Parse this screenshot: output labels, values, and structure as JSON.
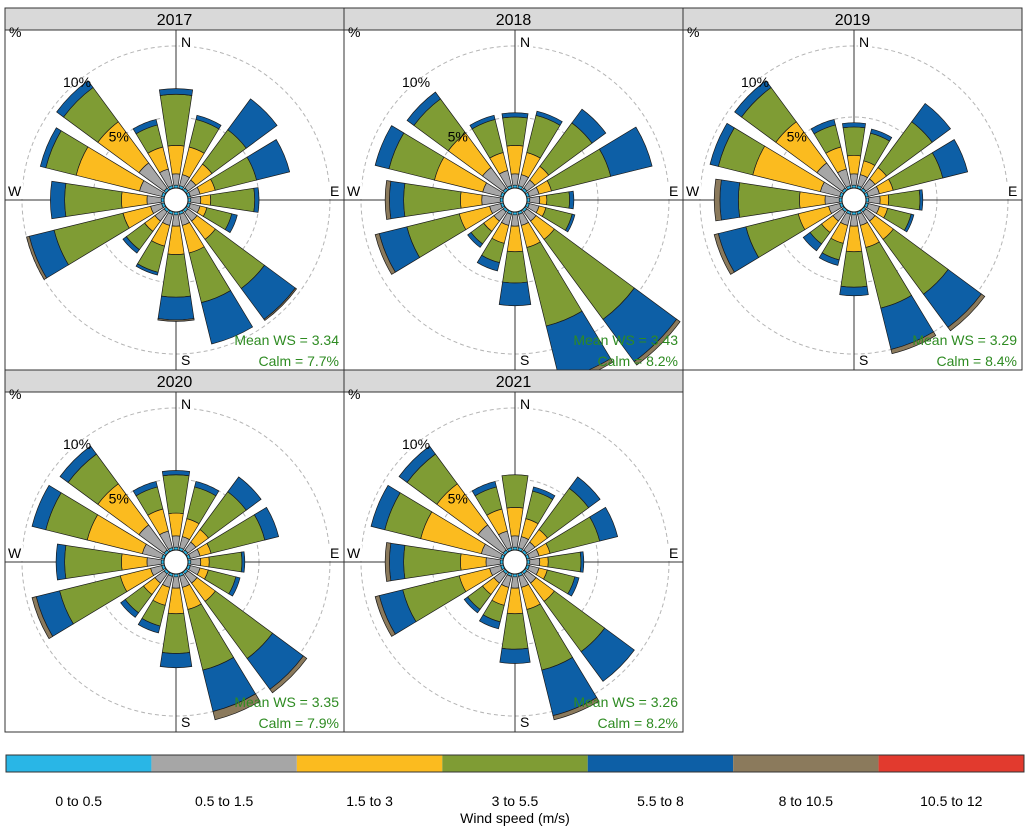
{
  "chart_data": {
    "type": "windrose",
    "directions": [
      "N",
      "NNE",
      "NE",
      "ENE",
      "E",
      "ESE",
      "SE",
      "SSE",
      "S",
      "SSW",
      "SW",
      "WSW",
      "W",
      "WNW",
      "NW",
      "NNW"
    ],
    "compass_labels": {
      "north": "N",
      "east": "E",
      "south": "S",
      "west": "W"
    },
    "ring_labels": [
      "5%",
      "10%"
    ],
    "ring_values": [
      5,
      10
    ],
    "corner_label": "%",
    "max_percent": 14,
    "legend": {
      "title": "Wind speed (m/s)",
      "bins": [
        {
          "label": "0 to 0.5",
          "color": "#29b6e6"
        },
        {
          "label": "0.5 to 1.5",
          "color": "#a6a6a6"
        },
        {
          "label": "1.5 to 3",
          "color": "#fbbb1f"
        },
        {
          "label": "3 to 5.5",
          "color": "#7f9c34"
        },
        {
          "label": "5.5 to 8",
          "color": "#0d5fa6"
        },
        {
          "label": "8 to 10.5",
          "color": "#8b7a5c"
        },
        {
          "label": "10.5 to 12",
          "color": "#e23a2e"
        }
      ]
    },
    "panels": [
      {
        "title": "2017",
        "mean_ws_label": "Mean WS = 3.34",
        "calm_label": "Calm = 7.7%",
        "cumulative_percent": [
          [
            0.2,
            1.0,
            3.0,
            6.6,
            7.0,
            7.0,
            7.0
          ],
          [
            0.2,
            1.0,
            3.0,
            5.0,
            5.3,
            5.3,
            5.3
          ],
          [
            0.2,
            0.9,
            2.3,
            5.3,
            8.0,
            8.0,
            8.0
          ],
          [
            0.2,
            0.9,
            2.0,
            5.0,
            7.4,
            7.4,
            7.4
          ],
          [
            0.2,
            0.9,
            1.6,
            4.7,
            5.0,
            5.0,
            5.0
          ],
          [
            0.2,
            0.9,
            1.4,
            3.2,
            3.6,
            3.6,
            3.6
          ],
          [
            0.2,
            1.0,
            2.6,
            6.9,
            9.6,
            9.7,
            9.7
          ],
          [
            0.2,
            1.0,
            3.0,
            6.6,
            9.6,
            9.6,
            9.6
          ],
          [
            0.2,
            1.0,
            3.0,
            6.0,
            7.6,
            7.7,
            7.7
          ],
          [
            0.2,
            1.0,
            2.5,
            4.4,
            4.6,
            4.6,
            4.6
          ],
          [
            0.2,
            1.0,
            1.9,
            3.5,
            3.8,
            3.8,
            3.8
          ],
          [
            0.2,
            1.0,
            3.0,
            8.0,
            9.8,
            10.0,
            10.0
          ],
          [
            0.2,
            1.2,
            3.0,
            7.0,
            8.0,
            8.0,
            8.0
          ],
          [
            0.2,
            1.8,
            6.4,
            8.6,
            9.0,
            9.0,
            9.0
          ],
          [
            0.2,
            2.4,
            6.0,
            9.0,
            9.6,
            9.6,
            9.6
          ],
          [
            0.2,
            1.4,
            3.0,
            4.6,
            5.0,
            5.0,
            5.0
          ]
        ]
      },
      {
        "title": "2018",
        "mean_ws_label": "Mean WS = 3.43",
        "calm_label": "Calm = 8.2%",
        "cumulative_percent": [
          [
            0.2,
            1.0,
            3.0,
            5.0,
            5.3,
            5.3,
            5.3
          ],
          [
            0.2,
            1.0,
            2.6,
            5.3,
            5.6,
            5.6,
            5.6
          ],
          [
            0.2,
            0.9,
            2.1,
            5.9,
            7.1,
            7.1,
            7.1
          ],
          [
            0.2,
            0.9,
            1.8,
            6.1,
            9.1,
            9.1,
            9.1
          ],
          [
            0.2,
            0.9,
            1.4,
            3.0,
            3.3,
            3.3,
            3.3
          ],
          [
            0.2,
            0.9,
            1.4,
            3.3,
            3.5,
            3.5,
            3.5
          ],
          [
            0.2,
            1.0,
            2.6,
            9.6,
            13.3,
            13.6,
            13.6
          ],
          [
            0.2,
            1.0,
            2.6,
            8.3,
            12.2,
            12.5,
            12.5
          ],
          [
            0.2,
            1.0,
            2.8,
            5.0,
            6.6,
            6.6,
            6.6
          ],
          [
            0.2,
            1.0,
            2.3,
            3.7,
            4.3,
            4.3,
            4.3
          ],
          [
            0.2,
            1.0,
            1.9,
            3.0,
            3.3,
            3.3,
            3.3
          ],
          [
            0.2,
            1.0,
            3.2,
            7.0,
            9.0,
            9.3,
            9.3
          ],
          [
            0.2,
            1.5,
            3.0,
            7.0,
            8.0,
            8.3,
            8.3
          ],
          [
            0.2,
            1.5,
            5.0,
            8.3,
            9.3,
            9.3,
            9.3
          ],
          [
            0.2,
            2.0,
            5.0,
            8.0,
            8.6,
            8.6,
            8.6
          ],
          [
            0.2,
            1.3,
            2.6,
            5.0,
            5.3,
            5.3,
            5.3
          ]
        ]
      },
      {
        "title": "2019",
        "mean_ws_label": "Mean WS = 3.29",
        "calm_label": "Calm = 8.4%",
        "cumulative_percent": [
          [
            0.2,
            1.0,
            2.3,
            4.3,
            4.6,
            4.6,
            4.6
          ],
          [
            0.2,
            1.0,
            2.0,
            4.0,
            4.3,
            4.3,
            4.3
          ],
          [
            0.2,
            1.0,
            2.0,
            6.0,
            7.6,
            7.6,
            7.6
          ],
          [
            0.2,
            1.0,
            2.0,
            5.6,
            7.4,
            7.4,
            7.4
          ],
          [
            0.2,
            1.0,
            1.6,
            3.8,
            4.0,
            4.0,
            4.0
          ],
          [
            0.2,
            1.0,
            1.6,
            3.3,
            3.5,
            3.5,
            3.5
          ],
          [
            0.2,
            1.0,
            2.6,
            7.4,
            10.3,
            10.6,
            10.6
          ],
          [
            0.2,
            1.0,
            2.6,
            7.0,
            10.0,
            10.3,
            10.3
          ],
          [
            0.2,
            1.0,
            2.8,
            5.3,
            5.9,
            5.9,
            5.9
          ],
          [
            0.2,
            1.0,
            2.3,
            3.5,
            3.9,
            3.9,
            3.9
          ],
          [
            0.2,
            1.0,
            2.0,
            3.0,
            3.6,
            3.6,
            3.6
          ],
          [
            0.2,
            1.0,
            3.2,
            7.0,
            9.0,
            9.3,
            9.3
          ],
          [
            0.2,
            1.2,
            3.0,
            7.3,
            8.6,
            9.0,
            9.0
          ],
          [
            0.2,
            1.6,
            6.5,
            9.0,
            9.6,
            9.6,
            9.6
          ],
          [
            0.2,
            2.4,
            6.0,
            9.0,
            9.6,
            9.6,
            9.6
          ],
          [
            0.2,
            1.4,
            3.0,
            4.6,
            5.0,
            5.0,
            5.0
          ]
        ]
      },
      {
        "title": "2020",
        "mean_ws_label": "Mean WS = 3.35",
        "calm_label": "Calm = 7.9%",
        "cumulative_percent": [
          [
            0.2,
            1.0,
            2.6,
            5.3,
            5.6,
            5.6,
            5.6
          ],
          [
            0.2,
            1.0,
            2.3,
            4.6,
            5.0,
            5.0,
            5.0
          ],
          [
            0.2,
            0.9,
            2.0,
            5.3,
            6.6,
            6.6,
            6.6
          ],
          [
            0.2,
            0.9,
            1.7,
            5.6,
            6.6,
            6.6,
            6.6
          ],
          [
            0.2,
            0.9,
            1.5,
            3.8,
            4.0,
            4.0,
            4.0
          ],
          [
            0.2,
            0.9,
            1.5,
            3.5,
            3.8,
            3.8,
            3.8
          ],
          [
            0.2,
            1.0,
            2.6,
            7.6,
            10.3,
            10.6,
            10.6
          ],
          [
            0.2,
            1.0,
            2.6,
            7.0,
            10.0,
            10.6,
            10.6
          ],
          [
            0.2,
            1.0,
            2.8,
            5.6,
            6.6,
            6.6,
            6.6
          ],
          [
            0.2,
            1.0,
            2.3,
            3.8,
            4.3,
            4.3,
            4.3
          ],
          [
            0.2,
            1.0,
            2.0,
            3.6,
            4.0,
            4.0,
            4.0
          ],
          [
            0.2,
            1.0,
            3.2,
            7.6,
            9.3,
            9.6,
            9.6
          ],
          [
            0.2,
            1.2,
            3.0,
            7.0,
            7.6,
            7.6,
            7.6
          ],
          [
            0.2,
            1.6,
            5.6,
            8.6,
            9.6,
            9.6,
            9.6
          ],
          [
            0.2,
            2.4,
            6.0,
            8.6,
            9.3,
            9.3,
            9.3
          ],
          [
            0.2,
            1.4,
            3.0,
            4.6,
            5.0,
            5.0,
            5.0
          ]
        ]
      },
      {
        "title": "2021",
        "mean_ws_label": "Mean WS = 3.26",
        "calm_label": "Calm = 8.2%",
        "cumulative_percent": [
          [
            0.2,
            1.0,
            3.0,
            5.3,
            5.3,
            5.3,
            5.3
          ],
          [
            0.2,
            1.0,
            2.3,
            4.3,
            4.6,
            4.6,
            4.6
          ],
          [
            0.2,
            0.9,
            2.0,
            5.6,
            6.6,
            6.6,
            6.6
          ],
          [
            0.2,
            0.9,
            1.7,
            5.3,
            6.6,
            6.6,
            6.6
          ],
          [
            0.2,
            0.9,
            1.5,
            3.8,
            4.0,
            4.0,
            4.0
          ],
          [
            0.2,
            0.9,
            1.5,
            3.5,
            3.8,
            3.8,
            3.8
          ],
          [
            0.2,
            1.0,
            2.6,
            7.0,
            9.6,
            9.6,
            9.6
          ],
          [
            0.2,
            1.0,
            2.6,
            7.0,
            10.3,
            10.6,
            10.6
          ],
          [
            0.2,
            1.0,
            2.8,
            5.3,
            6.3,
            6.3,
            6.3
          ],
          [
            0.2,
            1.0,
            2.3,
            3.5,
            4.0,
            4.0,
            4.0
          ],
          [
            0.2,
            1.0,
            2.0,
            3.3,
            3.6,
            3.6,
            3.6
          ],
          [
            0.2,
            1.0,
            3.2,
            7.3,
            9.0,
            9.3,
            9.3
          ],
          [
            0.2,
            1.2,
            3.0,
            7.0,
            8.0,
            8.3,
            8.3
          ],
          [
            0.2,
            1.6,
            6.0,
            8.6,
            9.6,
            9.6,
            9.6
          ],
          [
            0.2,
            2.4,
            6.0,
            8.6,
            9.3,
            9.3,
            9.3
          ],
          [
            0.2,
            1.4,
            3.0,
            4.6,
            5.0,
            5.0,
            5.0
          ]
        ]
      }
    ]
  }
}
